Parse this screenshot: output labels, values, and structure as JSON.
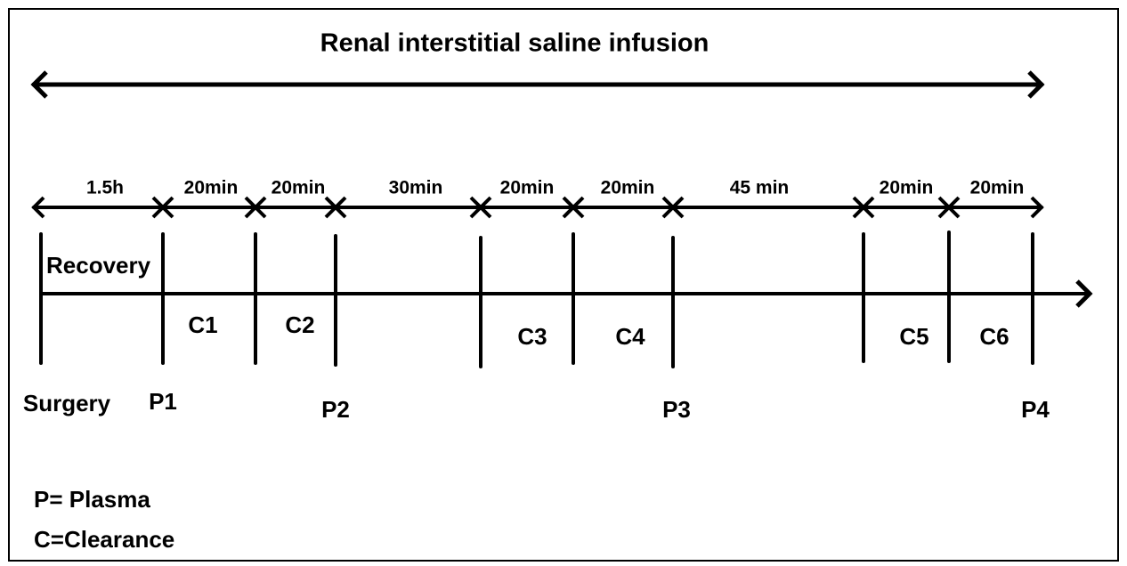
{
  "title": "Renal interstitial saline infusion",
  "intervals": [
    "1.5h",
    "20min",
    "20min",
    "30min",
    "20min",
    "20min",
    "45 min",
    "20min",
    "20min"
  ],
  "phase": "Recovery",
  "clearances": [
    "C1",
    "C2",
    "C3",
    "C4",
    "C5",
    "C6"
  ],
  "samples": [
    "Surgery",
    "P1",
    "P2",
    "P3",
    "P4"
  ],
  "legend": [
    "P= Plasma",
    "C=Clearance"
  ]
}
